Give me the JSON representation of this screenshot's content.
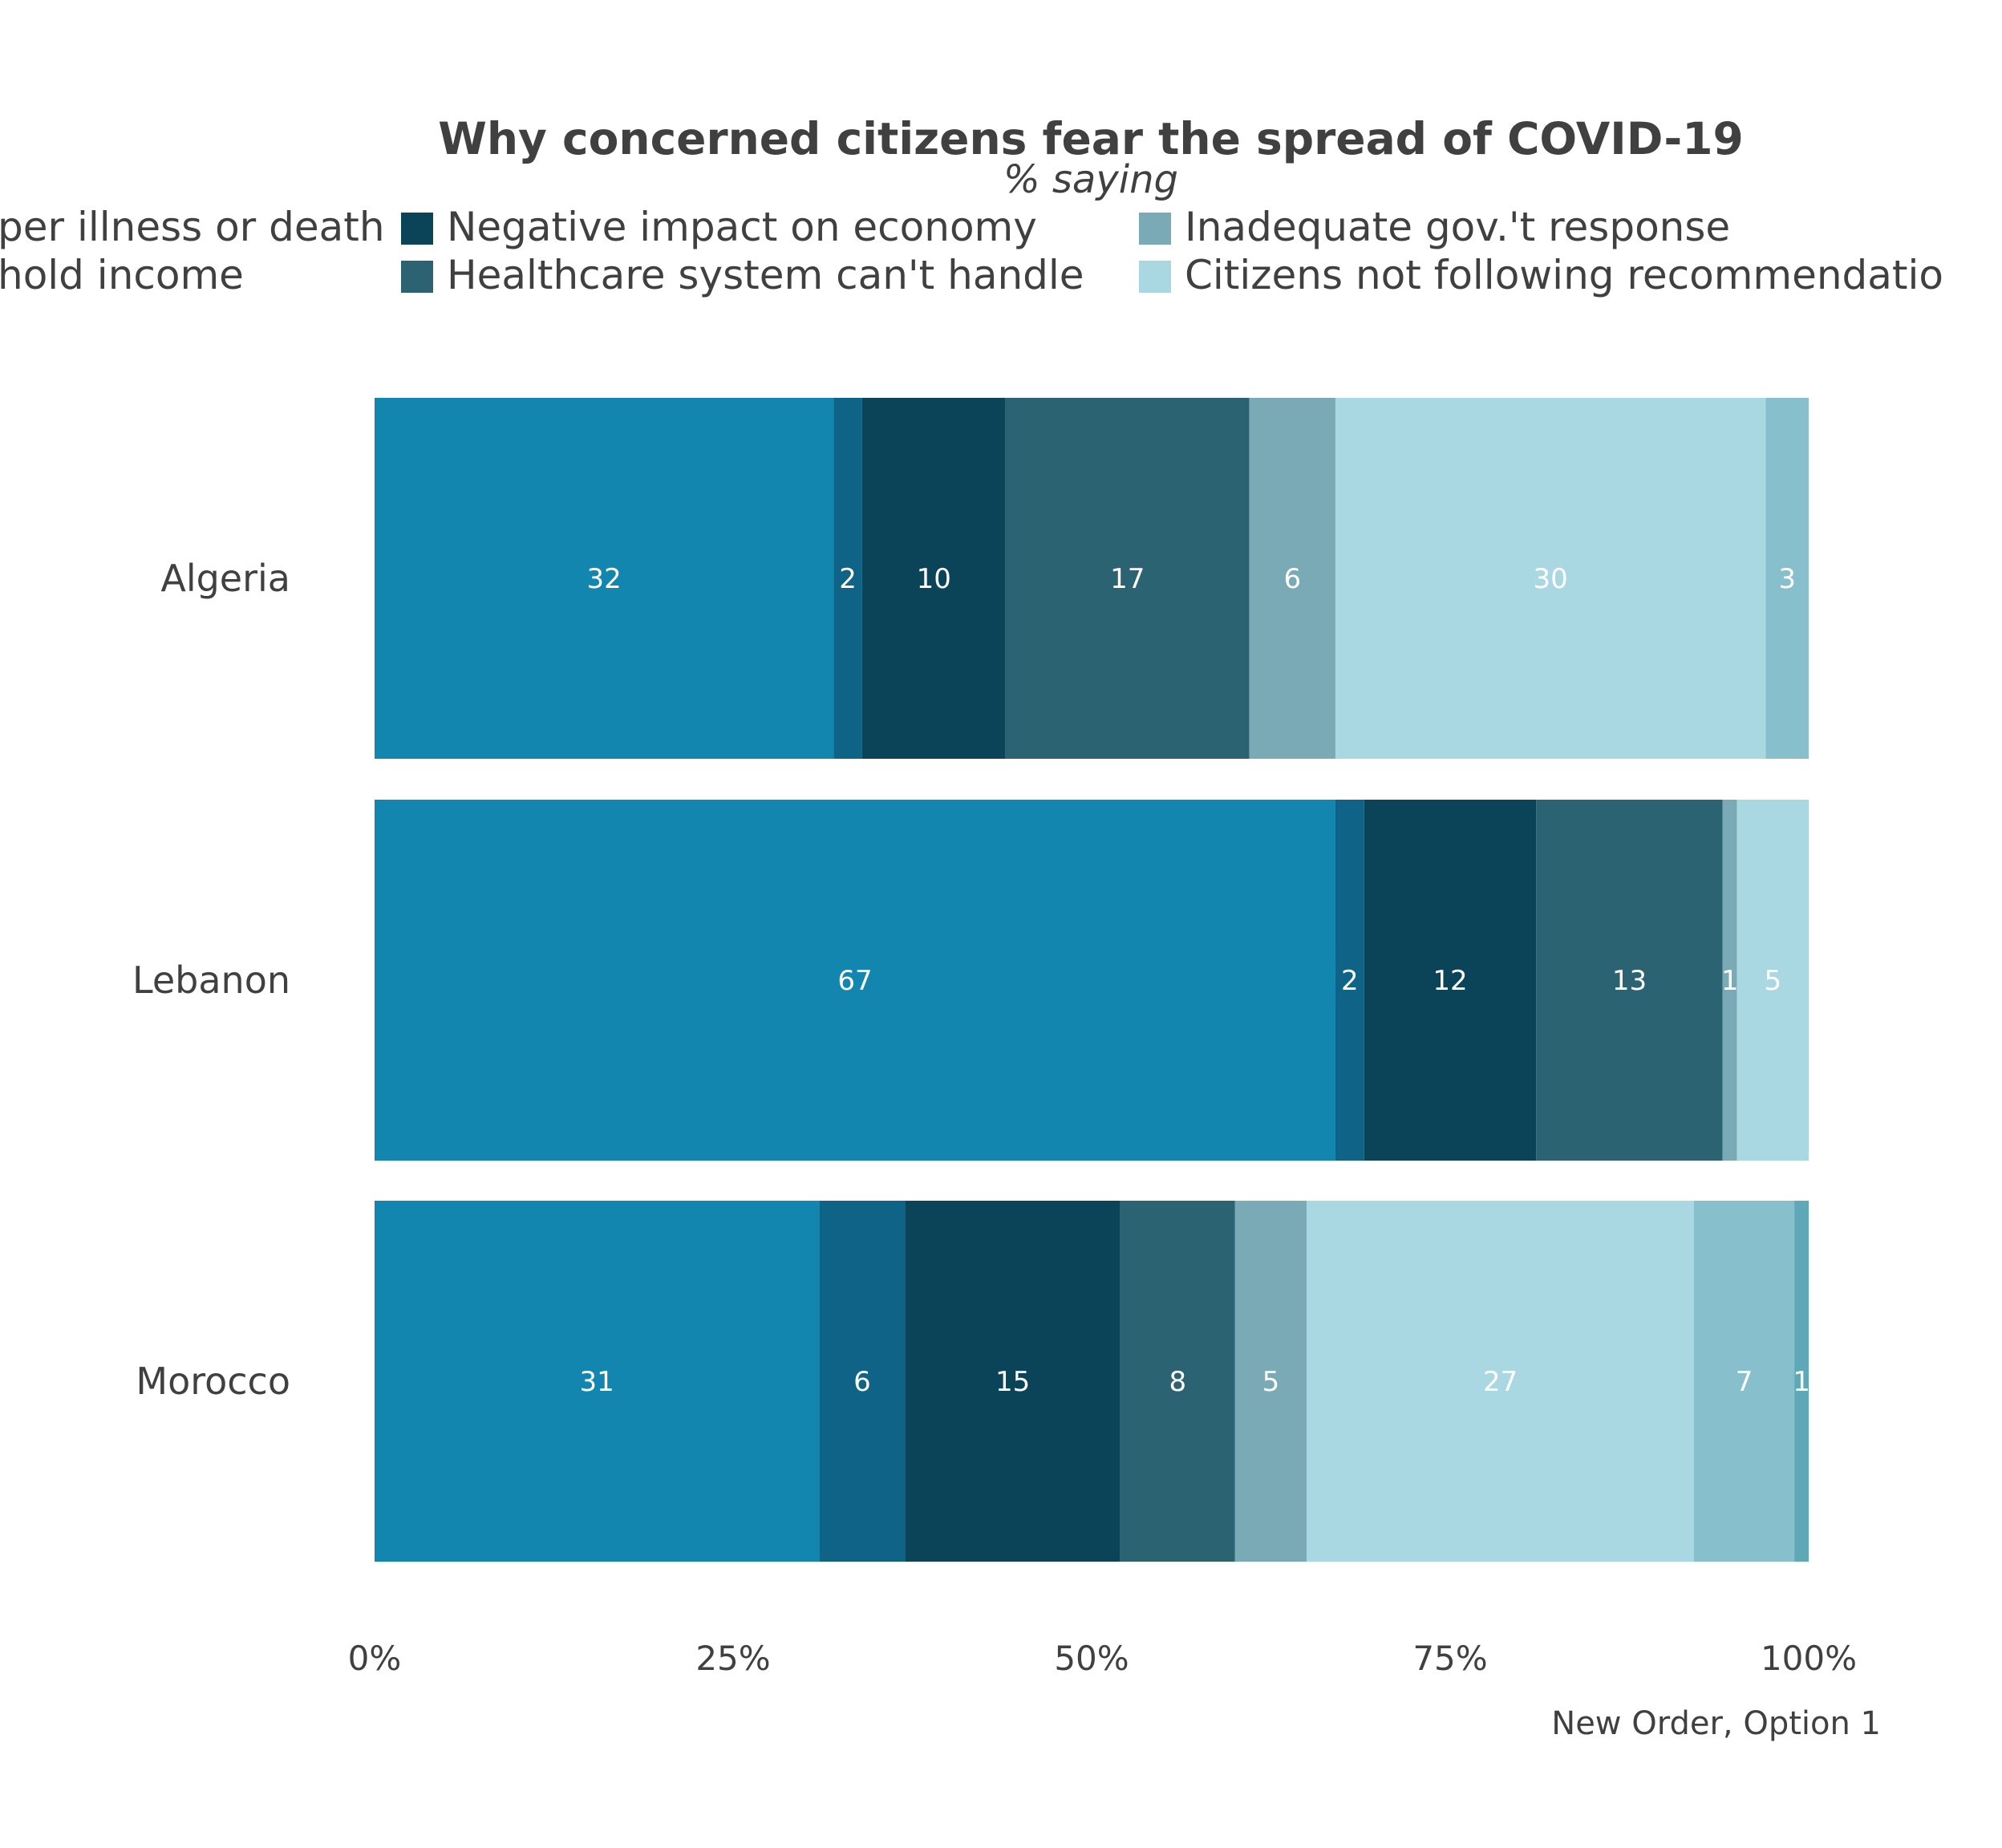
{
  "chart_data": {
    "type": "bar",
    "orientation": "horizontal",
    "stacked": true,
    "title": "Why concerned citizens fear the spread of COVID-19",
    "subtitle": "% saying",
    "caption": "New Order, Option 1",
    "categories": [
      "Algeria",
      "Lebanon",
      "Morocco"
    ],
    "xlim": [
      0,
      100
    ],
    "x_ticks": [
      "0%",
      "25%",
      "50%",
      "75%",
      "100%"
    ],
    "grid": false,
    "legend_position": "top",
    "series": [
      {
        "name": "per illness or death",
        "color": "#1386B0",
        "values": [
          32,
          67,
          31
        ]
      },
      {
        "name": "hold income",
        "color": "#0E6387",
        "values": [
          2,
          2,
          6
        ]
      },
      {
        "name": "Negative impact on economy",
        "color": "#0B4459",
        "values": [
          10,
          12,
          15
        ]
      },
      {
        "name": "Healthcare system can't handle",
        "color": "#2B6373",
        "values": [
          17,
          13,
          8
        ]
      },
      {
        "name": "Inadequate gov.'t response",
        "color": "#7BAAB7",
        "values": [
          6,
          1,
          5
        ]
      },
      {
        "name": "Citizens not following recommendatio",
        "color": "#AAD8E2",
        "values": [
          30,
          5,
          27
        ]
      },
      {
        "name": "",
        "color": "#87C0CC",
        "values": [
          3,
          0,
          7
        ]
      },
      {
        "name": "",
        "color": "#5FA8B8",
        "values": [
          0,
          0,
          1
        ]
      }
    ]
  }
}
